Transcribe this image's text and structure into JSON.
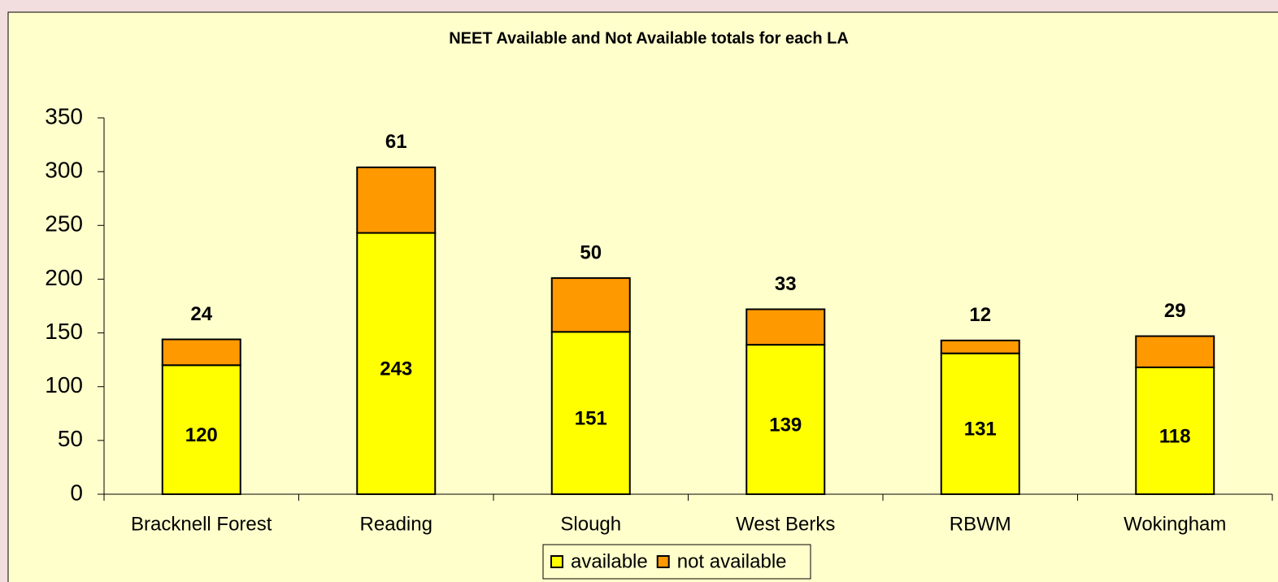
{
  "chart_data": {
    "type": "bar",
    "stacked": true,
    "title": "NEET Available and Not Available totals for each LA",
    "categories": [
      "Bracknell Forest",
      "Reading",
      "Slough",
      "West Berks",
      "RBWM",
      "Wokingham"
    ],
    "series": [
      {
        "name": "available",
        "color": "#ffff00",
        "values": [
          120,
          243,
          151,
          139,
          131,
          118
        ]
      },
      {
        "name": "not available",
        "color": "#ff9900",
        "values": [
          24,
          61,
          50,
          33,
          12,
          29
        ]
      }
    ],
    "ylim": [
      0,
      350
    ],
    "yticks": [
      0,
      50,
      100,
      150,
      200,
      250,
      300,
      350
    ],
    "legend": "bottom"
  }
}
